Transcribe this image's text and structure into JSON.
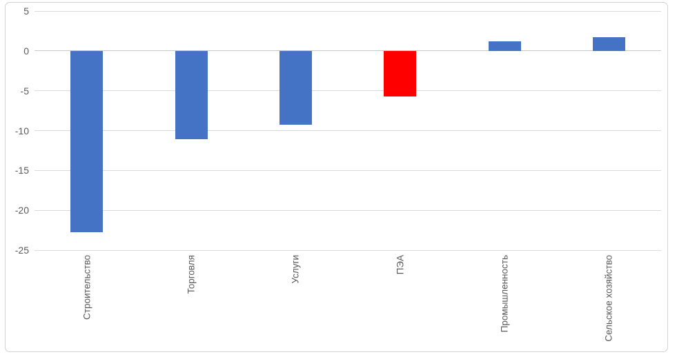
{
  "chart_data": {
    "type": "bar",
    "categories": [
      "Строительство",
      "Торговля",
      "Услуги",
      "ПЭА",
      "Промышленность",
      "Сельское хозяйство"
    ],
    "values": [
      -22.7,
      -11.1,
      -9.3,
      -5.7,
      1.2,
      1.7
    ],
    "bar_colors": [
      "#4472C4",
      "#4472C4",
      "#4472C4",
      "#FF0000",
      "#4472C4",
      "#4472C4"
    ],
    "title": "",
    "xlabel": "",
    "ylabel": "",
    "ylim": [
      -25,
      5
    ],
    "yticks": [
      5,
      0,
      -5,
      -10,
      -15,
      -20,
      -25
    ],
    "grid": true,
    "legend": "none",
    "category_label_rotation": 90
  },
  "colors": {
    "bar_default": "#4472C4",
    "bar_highlight": "#FF0000",
    "gridline": "#D9D9D9",
    "axis_line": "#C9C9C9",
    "text": "#595959",
    "border": "#D0D0D0",
    "background": "#FFFFFF"
  }
}
